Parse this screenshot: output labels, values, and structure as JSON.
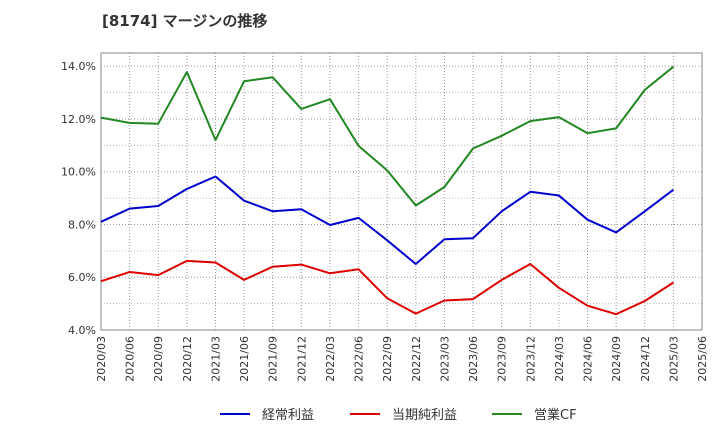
{
  "chart_data": {
    "type": "line",
    "title": "[8174]  マージンの推移",
    "xlabel": "",
    "ylabel": "",
    "ylim": [
      4.0,
      14.5
    ],
    "y_ticks": [
      "4.0%",
      "6.0%",
      "8.0%",
      "10.0%",
      "12.0%",
      "14.0%"
    ],
    "y_tick_values": [
      4.0,
      6.0,
      8.0,
      10.0,
      12.0,
      14.0
    ],
    "grid": true,
    "legend_position": "bottom",
    "categories": [
      "2020/03",
      "2020/06",
      "2020/09",
      "2020/12",
      "2021/03",
      "2021/06",
      "2021/09",
      "2021/12",
      "2022/03",
      "2022/06",
      "2022/09",
      "2022/12",
      "2023/03",
      "2023/06",
      "2023/09",
      "2023/12",
      "2024/03",
      "2024/06",
      "2024/09",
      "2024/12",
      "2025/03",
      "2025/06"
    ],
    "series": [
      {
        "name": "経常利益",
        "color": "#0000cc",
        "values": [
          8.1,
          8.6,
          8.7,
          9.35,
          9.82,
          8.9,
          8.5,
          8.58,
          7.98,
          8.25,
          7.4,
          6.5,
          7.44,
          7.48,
          8.5,
          9.24,
          9.1,
          8.18,
          7.7,
          8.5,
          9.32,
          null
        ]
      },
      {
        "name": "当期純利益",
        "color": "#dd0000",
        "values": [
          5.85,
          6.2,
          6.08,
          6.62,
          6.56,
          5.9,
          6.4,
          6.48,
          6.15,
          6.3,
          5.2,
          4.62,
          5.12,
          5.17,
          5.9,
          6.5,
          5.6,
          4.92,
          4.6,
          5.1,
          5.8,
          null
        ]
      },
      {
        "name": "営業CF",
        "color": "#228822",
        "values": [
          12.05,
          11.85,
          11.82,
          13.78,
          11.2,
          13.43,
          13.58,
          12.38,
          12.75,
          10.98,
          10.05,
          8.72,
          9.42,
          10.88,
          11.36,
          11.92,
          12.07,
          11.46,
          11.64,
          13.1,
          13.98,
          null
        ]
      }
    ]
  }
}
